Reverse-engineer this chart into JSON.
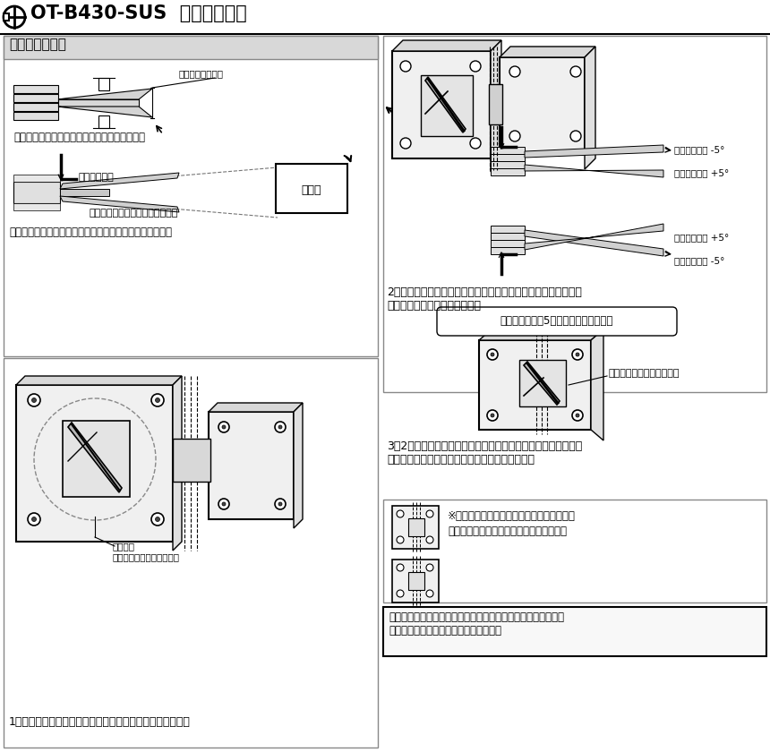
{
  "title": "OT-B430-SUS  戸先調整方法",
  "bg_color": "#ffffff",
  "texts": {
    "section1_title": "戸先の調整方法",
    "caption1": "出荷時の戸先設定",
    "caption2": "出荷時、羽根は六角穴ビス側に傾いています。",
    "caption3": "引き寄せる側",
    "caption4": "戸当り",
    "caption5": "戸当り側へ調整を行って下さい。",
    "caption6": "片開きの戸当りに傾けるよう戸先の調整を行って下さい。",
    "caption7": "引き寄せる側 -5°",
    "caption8": "押し広げる側 +5°",
    "caption9": "押し広げる側 +5°",
    "caption10": "引き寄せる側 -5°",
    "step2": "2．扉角度を「引き寄せる側」のヒンジの止めネジを六角レンチ\n（小）で締め角度を調整する。",
    "bubble": "片側に最大で約5度の調整が出来ます。",
    "label_stop": "止めネジは強く締め込む。",
    "step3": "3．2で調整した止めネジの反対側の「押し広げる側」のヒンジ\nの止めネジを六角レンチ（小）で締め固定する。",
    "note1": "※ヒンジは、上下ヶ所とも調整して下さい。",
    "note2": "　ガラスを吊り込んだまま作業できます。",
    "step1": "1．ヒンジ両面の止めネジを、六角レンチ（小）で緩める。",
    "label_tomeneji": "止めネジ",
    "label_ura": "裏側の止めネジも緩める。",
    "warning": "注意：止めネジが緩んだ状態で扉を開閉すると激しい金属音が\n鳴りますので、強く締め込んで下さい。"
  }
}
